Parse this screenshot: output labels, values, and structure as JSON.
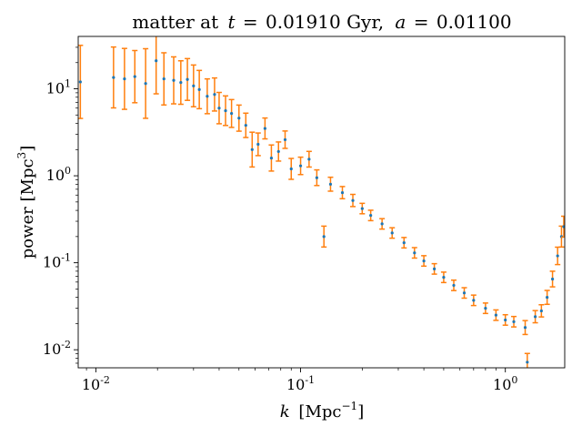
{
  "chart_data": {
    "type": "scatter",
    "title": "matter at t = 0.01910 Gyr, a = 0.01100",
    "title_parts": {
      "label": "matter at",
      "t_symbol": "t",
      "t_value": "0.01910 Gyr,",
      "a_symbol": "a",
      "a_value": "0.01100"
    },
    "xlabel": "k [Mpc⁻¹]",
    "xlabel_parts": {
      "symbol": "k",
      "unit": "[Mpc",
      "sup": "−1",
      "close": "]"
    },
    "ylabel": "power [Mpc³]",
    "ylabel_parts": {
      "text": "power [Mpc",
      "sup": "3",
      "close": "]"
    },
    "x_scale": "log",
    "y_scale": "log",
    "xlim": [
      0.0082,
      1.95
    ],
    "ylim": [
      0.0062,
      40
    ],
    "x_ticks": [
      {
        "value": 0.01,
        "base": "10",
        "exp": "-2"
      },
      {
        "value": 0.1,
        "base": "10",
        "exp": "-1"
      },
      {
        "value": 1,
        "base": "10",
        "exp": "0"
      }
    ],
    "y_ticks": [
      {
        "value": 0.01,
        "base": "10",
        "exp": "-2"
      },
      {
        "value": 0.1,
        "base": "10",
        "exp": "-1"
      },
      {
        "value": 1,
        "base": "10",
        "exp": "0"
      },
      {
        "value": 10,
        "base": "10",
        "exp": "1"
      }
    ],
    "grid": false,
    "marker_color": "#1f77b4",
    "errorbar_color": "#ff7f0e",
    "series": [
      {
        "points": [
          [
            0.0084,
            12.0,
            0.42
          ],
          [
            0.0122,
            13.5,
            0.35
          ],
          [
            0.0138,
            13.0,
            0.35
          ],
          [
            0.0155,
            13.8,
            0.3
          ],
          [
            0.0175,
            11.5,
            0.4
          ],
          [
            0.0197,
            21.0,
            0.38
          ],
          [
            0.0215,
            13.0,
            0.3
          ],
          [
            0.024,
            12.5,
            0.27
          ],
          [
            0.026,
            11.8,
            0.25
          ],
          [
            0.028,
            12.8,
            0.24
          ],
          [
            0.03,
            10.8,
            0.24
          ],
          [
            0.032,
            9.8,
            0.22
          ],
          [
            0.035,
            8.2,
            0.2
          ],
          [
            0.038,
            8.6,
            0.19
          ],
          [
            0.04,
            6.0,
            0.18
          ],
          [
            0.043,
            5.6,
            0.17
          ],
          [
            0.046,
            5.2,
            0.16
          ],
          [
            0.05,
            4.6,
            0.15
          ],
          [
            0.054,
            3.8,
            0.14
          ],
          [
            0.058,
            2.0,
            0.2
          ],
          [
            0.062,
            2.3,
            0.13
          ],
          [
            0.067,
            3.5,
            0.12
          ],
          [
            0.072,
            1.6,
            0.15
          ],
          [
            0.078,
            1.9,
            0.11
          ],
          [
            0.084,
            2.6,
            0.1
          ],
          [
            0.09,
            1.2,
            0.12
          ],
          [
            0.1,
            1.3,
            0.1
          ],
          [
            0.11,
            1.55,
            0.09
          ],
          [
            0.12,
            0.95,
            0.09
          ],
          [
            0.13,
            0.2,
            0.12
          ],
          [
            0.14,
            0.8,
            0.08
          ],
          [
            0.16,
            0.64,
            0.07
          ],
          [
            0.18,
            0.52,
            0.07
          ],
          [
            0.2,
            0.42,
            0.06
          ],
          [
            0.22,
            0.35,
            0.06
          ],
          [
            0.25,
            0.28,
            0.06
          ],
          [
            0.28,
            0.22,
            0.06
          ],
          [
            0.32,
            0.17,
            0.06
          ],
          [
            0.36,
            0.13,
            0.06
          ],
          [
            0.4,
            0.105,
            0.06
          ],
          [
            0.45,
            0.085,
            0.06
          ],
          [
            0.5,
            0.068,
            0.06
          ],
          [
            0.56,
            0.055,
            0.06
          ],
          [
            0.63,
            0.045,
            0.06
          ],
          [
            0.7,
            0.037,
            0.06
          ],
          [
            0.8,
            0.03,
            0.06
          ],
          [
            0.9,
            0.025,
            0.06
          ],
          [
            1.0,
            0.022,
            0.06
          ],
          [
            1.1,
            0.021,
            0.06
          ],
          [
            1.25,
            0.018,
            0.08
          ],
          [
            1.28,
            0.0072,
            0.1
          ],
          [
            1.4,
            0.024,
            0.07
          ],
          [
            1.5,
            0.028,
            0.07
          ],
          [
            1.6,
            0.04,
            0.08
          ],
          [
            1.7,
            0.065,
            0.09
          ],
          [
            1.8,
            0.12,
            0.1
          ],
          [
            1.88,
            0.2,
            0.12
          ],
          [
            1.93,
            0.26,
            0.12
          ]
        ]
      }
    ]
  }
}
